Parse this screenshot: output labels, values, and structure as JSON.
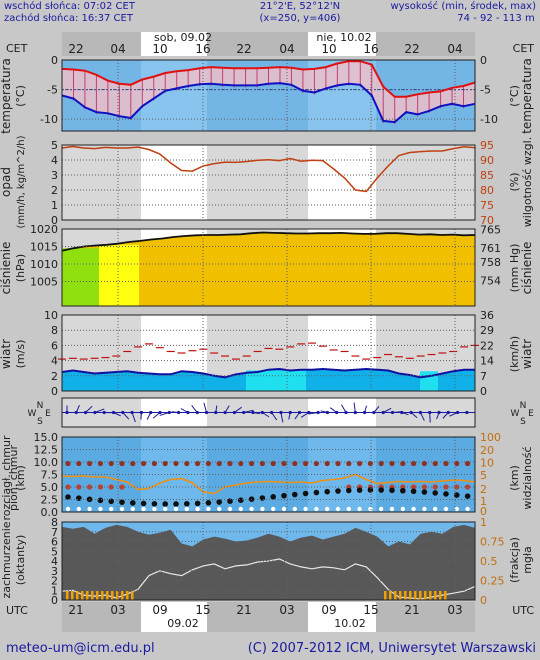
{
  "header": {
    "sunrise": "wschód słońca: 07:02 CET",
    "sunset": "zachód słońca: 16:37 CET",
    "coords": "21°2'E, 52°12'N",
    "grid": "(x=250, y=406)",
    "elev_label": "wysokość (min, środek, max)",
    "elev_values": "74 - 92 - 113 m"
  },
  "timeline_top": {
    "tz": "CET",
    "day1": "sob, 09.02",
    "day2": "nie, 10.02",
    "hours": [
      "22",
      "04",
      "10",
      "16",
      "22",
      "04",
      "10",
      "16",
      "22",
      "04"
    ]
  },
  "timeline_bottom": {
    "tz": "UTC",
    "hours": [
      "21",
      "03",
      "09",
      "15",
      "21",
      "03",
      "09",
      "15",
      "21",
      "03"
    ],
    "day1": "09.02",
    "day2": "10.02"
  },
  "footer": {
    "email": "meteo-um@icm.edu.pl",
    "copyright": "(C) 2007-2012 ICM, Uniwersytet Warszawski"
  },
  "colors": {
    "background": "#c8c8c8",
    "plot_sky": "#88c4ee",
    "temp_red": "#e01010",
    "temp_blue": "#1010c0",
    "pressure_fill": "#f0c000",
    "humidity": "#c04010"
  },
  "chart_data": [
    {
      "id": "temperature",
      "type": "line",
      "ylabel_left": "temperatura",
      "unit_left": "(°C)",
      "ylabel_right": "temperatura",
      "unit_right": "(°C)",
      "ylim": [
        -12,
        0
      ],
      "ticks": [
        "0",
        "-5",
        "-10"
      ],
      "series": [
        {
          "values": [
            -1.5,
            -1.6,
            -1.8,
            -2.5,
            -3.5,
            -4,
            -4.2,
            -3.3,
            -2.8,
            -2.2,
            -1.9,
            -1.7,
            -1.4,
            -1.2,
            -1.3,
            -1.4,
            -1.4,
            -1.4,
            -1.3,
            -1.2,
            -1.3,
            -1.6,
            -1.5,
            -1.2,
            -0.6,
            -0.2,
            -0.2,
            -0.8,
            -4.5,
            -6.2,
            -6.2,
            -5.8,
            -5.5,
            -5.3,
            -4.7,
            -4.4,
            -3.8
          ]
        },
        {
          "values": [
            -6,
            -6.5,
            -8,
            -8.8,
            -9,
            -9.5,
            -9.8,
            -7.8,
            -6.5,
            -5.2,
            -4.8,
            -4.4,
            -4.1,
            -4.0,
            -4.2,
            -4.3,
            -4.3,
            -4.3,
            -4.0,
            -3.9,
            -4.2,
            -5.2,
            -5.5,
            -4.8,
            -4.3,
            -4,
            -4.2,
            -6,
            -10.3,
            -10.5,
            -8.8,
            -9.2,
            -8.6,
            -7.8,
            -7.4,
            -7.8,
            -7.4
          ]
        }
      ]
    },
    {
      "id": "precip_humidity",
      "type": "line",
      "ylabel_left": "opad",
      "unit_left": "(mm/h, kg/m^2/h)",
      "ylabel_right": "wilgotność wzgl.",
      "unit_right": "(%)",
      "ylim_left": [
        0,
        5
      ],
      "ticks_left": [
        "0",
        "1",
        "2",
        "3",
        "4",
        "5"
      ],
      "ylim_right": [
        70,
        95
      ],
      "ticks_right": [
        "70",
        "75",
        "80",
        "85",
        "90",
        "95"
      ],
      "series": [
        {
          "name": "",
          "values": [
            94,
            94.5,
            94,
            93.8,
            94.2,
            94.0,
            94.0,
            94.3,
            93.5,
            92,
            89,
            86.5,
            86.3,
            88,
            88.8,
            89.3,
            89.2,
            89.5,
            89.9,
            90.1,
            89.8,
            90.5,
            89.6,
            89.9,
            89.8,
            87,
            84,
            80,
            79.5,
            84,
            88,
            91.5,
            92.5,
            92.8,
            93,
            93,
            93.8,
            94.4,
            94.1
          ]
        }
      ]
    },
    {
      "id": "pressure",
      "type": "area",
      "ylabel_left": "ciśnienie",
      "unit_left": "(hPa)",
      "ylabel_right": "ciśnienie",
      "unit_right": "(mm Hg)",
      "ylim_left": [
        998,
        1020
      ],
      "ticks_left": [
        "1005",
        "1010",
        "1015",
        "1020"
      ],
      "ticks_right": [
        "754",
        "758",
        "761",
        "765"
      ],
      "series": [
        {
          "values": [
            1013.8,
            1014.5,
            1015.0,
            1015.3,
            1015.5,
            1015.8,
            1016.3,
            1016.6,
            1017.0,
            1017.3,
            1017.7,
            1018.0,
            1018.2,
            1018.3,
            1018.3,
            1018.4,
            1018.5,
            1018.8,
            1019.0,
            1018.9,
            1018.8,
            1018.7,
            1018.7,
            1018.8,
            1018.8,
            1018.9,
            1018.7,
            1018.6,
            1018.6,
            1018.8,
            1018.8,
            1018.6,
            1018.4,
            1018.5,
            1018.3,
            1018.4,
            1018.2,
            1018.3
          ]
        }
      ]
    },
    {
      "id": "wind",
      "type": "line",
      "ylabel_left": "wiatr",
      "unit_left": "(m/s)",
      "ylabel_right": "wiatr",
      "unit_right": "(km/h)",
      "ylim_left": [
        0,
        10
      ],
      "ticks_left": [
        "0",
        "2",
        "4",
        "6",
        "8",
        "10"
      ],
      "ticks_right": [
        "0",
        "7",
        "14",
        "22",
        "29",
        "36"
      ],
      "series": [
        {
          "values": [
            2.5,
            2.7,
            2.5,
            2.3,
            2.4,
            2.5,
            2.6,
            2.4,
            2.3,
            2.2,
            2.2,
            2.6,
            2.5,
            2.3,
            2.0,
            1.8,
            2.2,
            2.4,
            2.5,
            2.8,
            2.9,
            2.7,
            2.8,
            2.8,
            2.9,
            2.8,
            2.7,
            2.8,
            2.9,
            2.8,
            2.7,
            2.3,
            2.1,
            1.8,
            2.0,
            2.3,
            2.6,
            2.8,
            2.8
          ]
        },
        {
          "values": [
            4.2,
            4.3,
            4.2,
            4.3,
            4.4,
            4.6,
            5.2,
            5.8,
            6.2,
            5.7,
            5.2,
            5.0,
            5.3,
            5.5,
            5.0,
            4.6,
            4.2,
            4.6,
            5.2,
            5.6,
            5.5,
            5.8,
            6.2,
            6.3,
            5.9,
            5.4,
            5.2,
            4.6,
            4.2,
            4.4,
            4.8,
            4.5,
            4.3,
            4.6,
            4.8,
            5.0,
            5.2,
            5.8,
            6.0
          ]
        }
      ]
    },
    {
      "id": "wind_direction",
      "type": "scatter",
      "labels": [
        "N",
        "S",
        "W",
        "E"
      ]
    },
    {
      "id": "clouds_visibility",
      "type": "scatter",
      "ylabel_left": "rozciągł. chmur",
      "ylabel_left2": "(km)",
      "ylabel_right": "widzialność",
      "unit_right": "(km)",
      "ylim_left": [
        0,
        15
      ],
      "ticks_left": [
        "0.0",
        "2.5",
        "5.0",
        "7.5",
        "10.0",
        "12.5",
        "15.0"
      ],
      "ticks_right": [
        "0",
        "1",
        "2",
        "5",
        "10",
        "20",
        "100"
      ],
      "series": [
        {
          "values": [
            7.2,
            7.1,
            7.2,
            7.0,
            7.0,
            6.5,
            6.0,
            4.5,
            4.7,
            5.8,
            6.5,
            6.7,
            5.8,
            4.0,
            3.7,
            5.0,
            5.4,
            5.8,
            6.0,
            6.1,
            6.0,
            5.9,
            6.0,
            5.8,
            6.3,
            6.5,
            6.8,
            7.5,
            6.5,
            5.7,
            5.9,
            6.1,
            6.0,
            6.1,
            6.0,
            6.2,
            6.4,
            6.3,
            6.0
          ]
        }
      ]
    },
    {
      "id": "cloud_cover",
      "type": "area",
      "ylabel_left": "zachmurzenie",
      "ylabel_left2": "pion. chmur",
      "unit_left": "(oktanty)",
      "ylabel_right": "mgła",
      "unit_right": "(frakcja)",
      "ylim_left": [
        0,
        8
      ],
      "ticks_left": [
        "0",
        "1",
        "2",
        "3",
        "4",
        "5",
        "6",
        "7",
        "8"
      ],
      "ticks_right": [
        "0",
        "0.25",
        "0.5",
        "0.75",
        "1"
      ],
      "series": [
        {
          "values": [
            7.5,
            7.3,
            7.5,
            6.8,
            7.4,
            7.7,
            7.5,
            7.0,
            6.7,
            6.9,
            7.2,
            5.8,
            5.5,
            6.2,
            6.5,
            6.3,
            6.0,
            6.1,
            6.4,
            6.8,
            6.5,
            6.0,
            6.4,
            6.6,
            6.2,
            6.5,
            6.8,
            7.4,
            7.0,
            6.5,
            5.5,
            6.0,
            5.7,
            6.8,
            7.0,
            6.8,
            7.5,
            7.7,
            7.4
          ]
        },
        {
          "values": [
            0.9,
            1.0,
            0.5,
            0.4,
            0.5,
            0.2,
            0.6,
            1.1,
            2.5,
            3.0,
            2.7,
            2.5,
            3.1,
            3.5,
            3.7,
            3.2,
            3.5,
            3.6,
            3.9,
            4.0,
            4.2,
            3.7,
            3.4,
            3.2,
            3.4,
            3.3,
            3.1,
            3.7,
            3.4,
            2.3,
            1.1,
            0.3,
            0.2,
            0.1,
            0.3,
            0.5,
            0.7,
            0.9,
            1.4
          ]
        }
      ]
    }
  ]
}
